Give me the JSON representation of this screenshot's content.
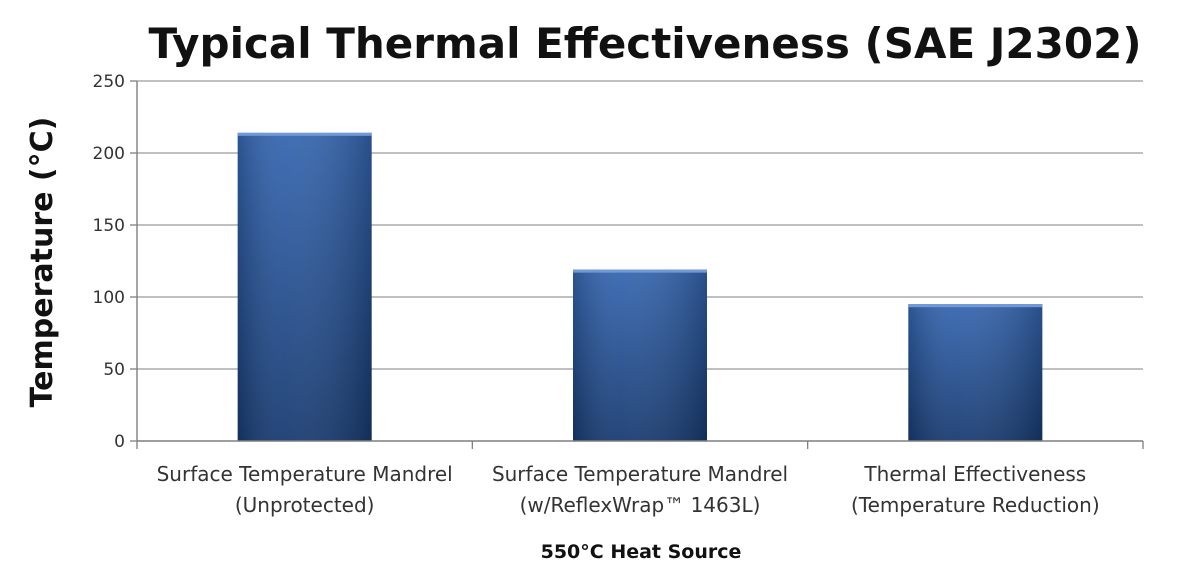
{
  "chart_data": {
    "type": "bar",
    "title": "Typical Thermal Effectiveness (SAE J2302)",
    "xlabel": "550°C Heat Source",
    "ylabel": "Temperature (°C)",
    "ylim": [
      0,
      250
    ],
    "yticks": [
      "0",
      "50",
      "100",
      "150",
      "200",
      "250"
    ],
    "grid": true,
    "categories": [
      [
        "Surface Temperature Mandrel",
        "(Unprotected)"
      ],
      [
        "Surface Temperature Mandrel",
        "(w/ReflexWrap™ 1463L)"
      ],
      [
        "Thermal Effectiveness",
        "(Temperature Reduction)"
      ]
    ],
    "values": [
      214,
      119,
      95
    ],
    "colors": {
      "bar_top": "#3566b0",
      "bar_bottom": "#173a70",
      "grid": "#9a9a9a",
      "axis": "#7f7f7f"
    }
  }
}
